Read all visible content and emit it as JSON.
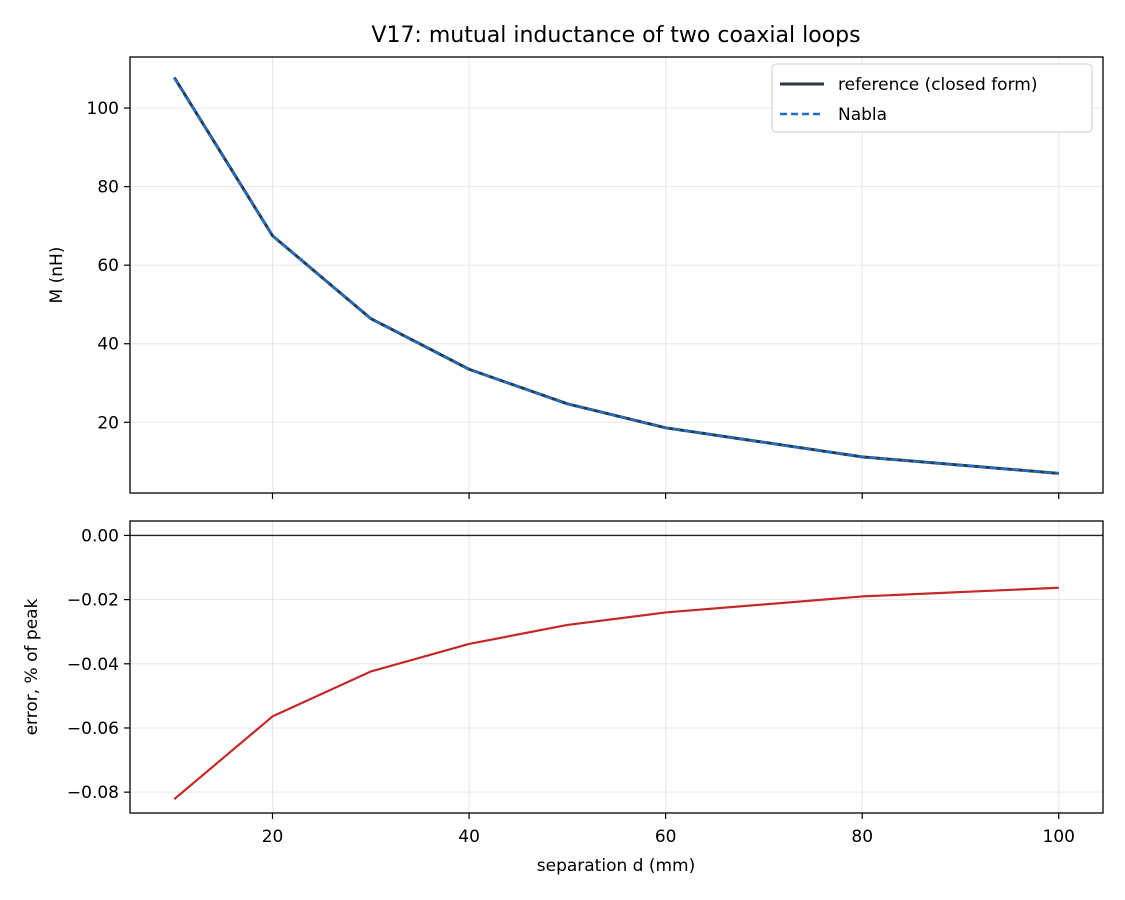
{
  "title": "V17: mutual inductance of two coaxial loops",
  "xlabel": "separation d (mm)",
  "colors": {
    "reference": "#2b3a4a",
    "nabla": "#1f6fc8",
    "error": "#c62828",
    "grid": "#e6e6e6",
    "zero_line": "#222222"
  },
  "chart_data": [
    {
      "type": "line",
      "title": "V17: mutual inductance of two coaxial loops",
      "xlabel": "",
      "ylabel": "M (nH)",
      "xlim": [
        5.5,
        104.5
      ],
      "ylim": [
        2.0,
        113.0
      ],
      "xticks": [
        20,
        40,
        60,
        80,
        100
      ],
      "xtick_labels_shown": false,
      "yticks": [
        20,
        40,
        60,
        80,
        100
      ],
      "ytick_labels": [
        "20",
        "40",
        "60",
        "80",
        "100"
      ],
      "grid": true,
      "legend": "top-right",
      "x": [
        10,
        20,
        30,
        40,
        50,
        60,
        80,
        100
      ],
      "series": [
        {
          "name": "reference (closed form)",
          "style": "solid",
          "values": [
            107.8,
            67.5,
            46.4,
            33.5,
            24.7,
            18.6,
            11.2,
            7.0
          ]
        },
        {
          "name": "Nabla",
          "style": "dashed",
          "values": [
            107.7,
            67.46,
            46.38,
            33.49,
            24.69,
            18.59,
            11.19,
            6.99
          ]
        }
      ]
    },
    {
      "type": "line",
      "title": "",
      "xlabel": "separation d (mm)",
      "ylabel": "error, % of peak",
      "xlim": [
        5.5,
        104.5
      ],
      "ylim": [
        -0.0865,
        0.0045
      ],
      "xticks": [
        20,
        40,
        60,
        80,
        100
      ],
      "xtick_labels": [
        "20",
        "40",
        "60",
        "80",
        "100"
      ],
      "yticks": [
        0.0,
        -0.02,
        -0.04,
        -0.06,
        -0.08
      ],
      "ytick_labels": [
        "0.00",
        "−0.02",
        "−0.04",
        "−0.06",
        "−0.08"
      ],
      "grid": true,
      "reference_line_y": 0.0,
      "x": [
        10,
        20,
        30,
        40,
        50,
        60,
        80,
        100
      ],
      "series": [
        {
          "style": "solid",
          "values": [
            -0.0822,
            -0.0564,
            -0.0424,
            -0.0338,
            -0.0279,
            -0.024,
            -0.019,
            -0.0163
          ]
        }
      ]
    }
  ]
}
